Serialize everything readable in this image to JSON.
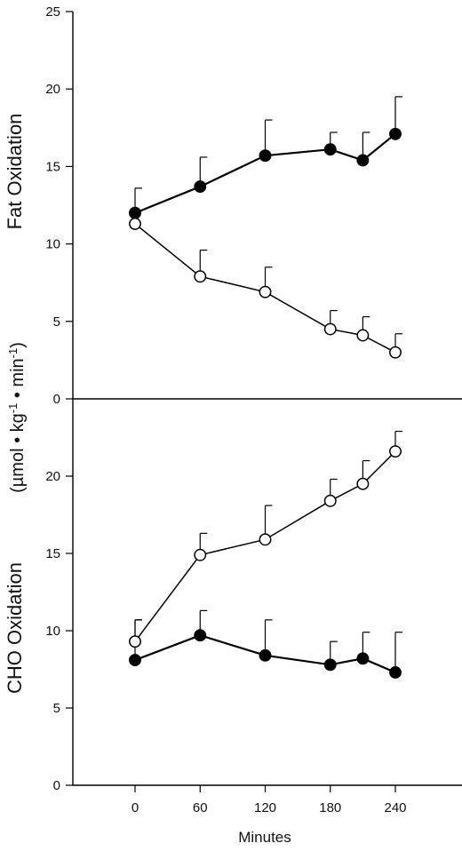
{
  "chart_data": [
    {
      "type": "line",
      "panel": "top",
      "ylabel": "Fat Oxidation",
      "ylim": [
        0,
        25
      ],
      "yticks": [
        0,
        5,
        10,
        15,
        20,
        25
      ],
      "x": [
        0,
        60,
        120,
        180,
        210,
        240
      ],
      "series": [
        {
          "marker": "filled",
          "color": "#000000",
          "values": [
            12.0,
            13.7,
            15.7,
            16.1,
            15.4,
            17.1
          ],
          "error_plus": [
            1.6,
            1.9,
            2.3,
            1.1,
            1.8,
            2.4
          ]
        },
        {
          "marker": "open",
          "color": "#000000",
          "values": [
            11.3,
            7.9,
            6.9,
            4.5,
            4.1,
            3.0
          ],
          "error_plus": [
            0,
            1.7,
            1.6,
            1.2,
            1.2,
            1.2
          ]
        }
      ]
    },
    {
      "type": "line",
      "panel": "bottom",
      "ylabel": "CHO Oxidation",
      "ylim": [
        0,
        25
      ],
      "yticks": [
        0,
        5,
        10,
        15,
        20
      ],
      "x": [
        0,
        60,
        120,
        180,
        210,
        240
      ],
      "xticks": [
        0,
        60,
        120,
        180,
        240
      ],
      "xlim": [
        -70,
        305
      ],
      "xlabel": "Minutes",
      "series": [
        {
          "marker": "filled",
          "color": "#000000",
          "values": [
            8.1,
            9.7,
            8.4,
            7.8,
            8.2,
            7.3
          ],
          "error_plus": [
            2.6,
            1.6,
            2.3,
            1.5,
            1.7,
            2.6
          ]
        },
        {
          "marker": "open",
          "color": "#000000",
          "values": [
            9.3,
            14.9,
            15.9,
            18.4,
            19.5,
            21.6
          ],
          "error_plus": [
            1.4,
            1.4,
            2.2,
            1.4,
            1.5,
            1.3
          ]
        }
      ]
    }
  ],
  "shared_ylabel": "(µmol • kg-1 • min-1)",
  "shared_ylabel_parts": {
    "open": "(µmol • kg",
    "sup1": "-1",
    "mid": " • min",
    "sup2": "-1",
    "close": ")"
  }
}
